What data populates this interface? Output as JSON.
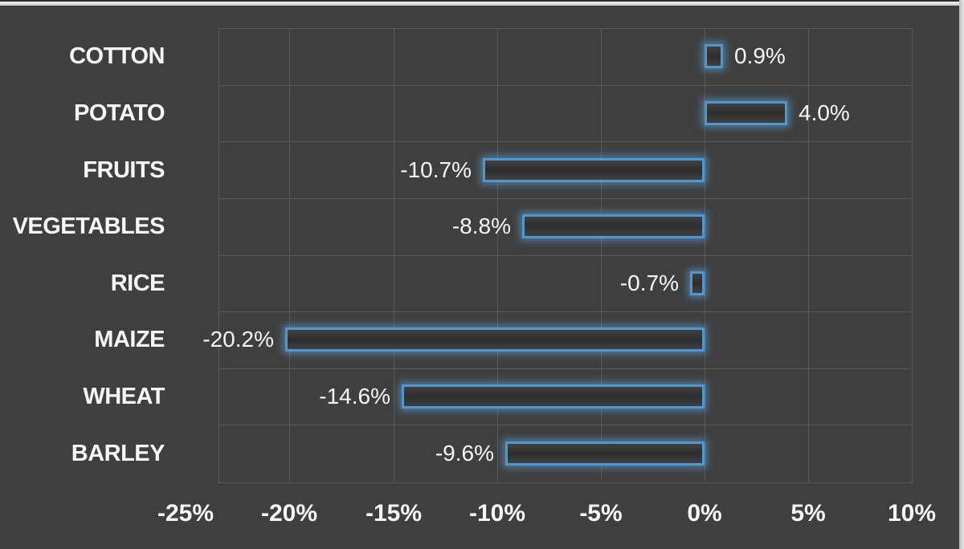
{
  "chart_data": {
    "type": "bar",
    "orientation": "horizontal",
    "title": "",
    "xlabel": "",
    "ylabel": "",
    "categories": [
      "COTTON",
      "POTATO",
      "FRUITS",
      "VEGETABLES",
      "RICE",
      "MAIZE",
      "WHEAT",
      "BARLEY"
    ],
    "values": [
      0.9,
      4.0,
      -10.7,
      -8.8,
      -0.7,
      -20.2,
      -14.6,
      -9.6
    ],
    "value_labels": [
      "0.9%",
      "4.0%",
      "-10.7%",
      "-8.8%",
      "-0.7%",
      "-20.2%",
      "-14.6%",
      "-9.6%"
    ],
    "x_ticks": [
      -25,
      -20,
      -15,
      -10,
      -5,
      0,
      5,
      10
    ],
    "x_tick_labels": [
      "-25%",
      "-20%",
      "-15%",
      "-10%",
      "-5%",
      "0%",
      "5%",
      "10%"
    ],
    "xlim": [
      -23.4,
      10
    ],
    "grid": true,
    "legend": false,
    "colors": {
      "background": "#3f3f3f",
      "gridline": "#595959",
      "plot_border": "#595959",
      "bar_stroke": "#4E97D1",
      "bar_glow": "rgba(99,170,231,0.55)",
      "bar_fill_edge": "#414141",
      "bar_fill_middle": "#2f2f2f",
      "text": "#f7f7f7",
      "top_border_strip": "#d2d2d2",
      "right_border_strip": "#d8d8d8"
    }
  }
}
